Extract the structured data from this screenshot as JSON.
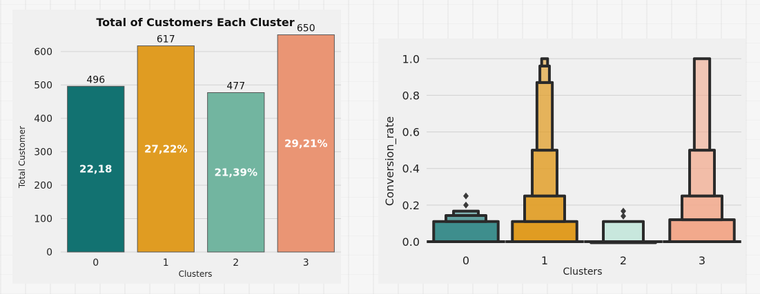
{
  "chart_data": [
    {
      "type": "bar",
      "title": "Total of Customers Each Cluster",
      "xlabel": "Clusters",
      "ylabel": "Total Customer",
      "categories": [
        "0",
        "1",
        "2",
        "3"
      ],
      "values": [
        496,
        617,
        477,
        650
      ],
      "value_labels": [
        "496",
        "617",
        "477",
        "650"
      ],
      "percent_labels": [
        "22,18",
        "27,22%",
        "21,39%",
        "29,21%"
      ],
      "colors": [
        "#127271",
        "#e09c22",
        "#72b5a0",
        "#ea9574"
      ],
      "yticks": [
        0,
        100,
        200,
        300,
        400,
        500,
        600
      ],
      "ylim": [
        0,
        680
      ],
      "grid": true
    },
    {
      "type": "boxen",
      "title": "",
      "xlabel": "Clusters",
      "ylabel": "Conversion_rate",
      "categories": [
        "0",
        "1",
        "2",
        "3"
      ],
      "yticks": [
        "0.0",
        "0.2",
        "0.4",
        "0.6",
        "0.8",
        "1.0"
      ],
      "ylim": [
        -0.03,
        1.05
      ],
      "grid": true,
      "colors": [
        "#3e8e8d",
        "#e09c22",
        "#b9e3d6",
        "#f2a98c"
      ],
      "boxes": [
        {
          "cluster": "0",
          "levels": [
            {
              "lo": 0.0,
              "hi": 0.11
            },
            {
              "lo": 0.11,
              "hi": 0.143
            },
            {
              "lo": 0.143,
              "hi": 0.167
            }
          ],
          "outliers": [
            0.2,
            0.25
          ]
        },
        {
          "cluster": "1",
          "levels": [
            {
              "lo": 0.0,
              "hi": 0.11
            },
            {
              "lo": 0.11,
              "hi": 0.25
            },
            {
              "lo": 0.25,
              "hi": 0.5
            },
            {
              "lo": 0.5,
              "hi": 0.87
            },
            {
              "lo": 0.87,
              "hi": 0.96
            },
            {
              "lo": 0.96,
              "hi": 1.0
            }
          ],
          "outliers": []
        },
        {
          "cluster": "2",
          "levels": [
            {
              "lo": 0.0,
              "hi": 0.0
            },
            {
              "lo": 0.0,
              "hi": 0.11
            }
          ],
          "outliers": [
            0.14,
            0.167
          ]
        },
        {
          "cluster": "3",
          "levels": [
            {
              "lo": 0.0,
              "hi": 0.12
            },
            {
              "lo": 0.12,
              "hi": 0.25
            },
            {
              "lo": 0.25,
              "hi": 0.5
            },
            {
              "lo": 0.5,
              "hi": 1.0
            }
          ],
          "outliers": []
        }
      ]
    }
  ]
}
